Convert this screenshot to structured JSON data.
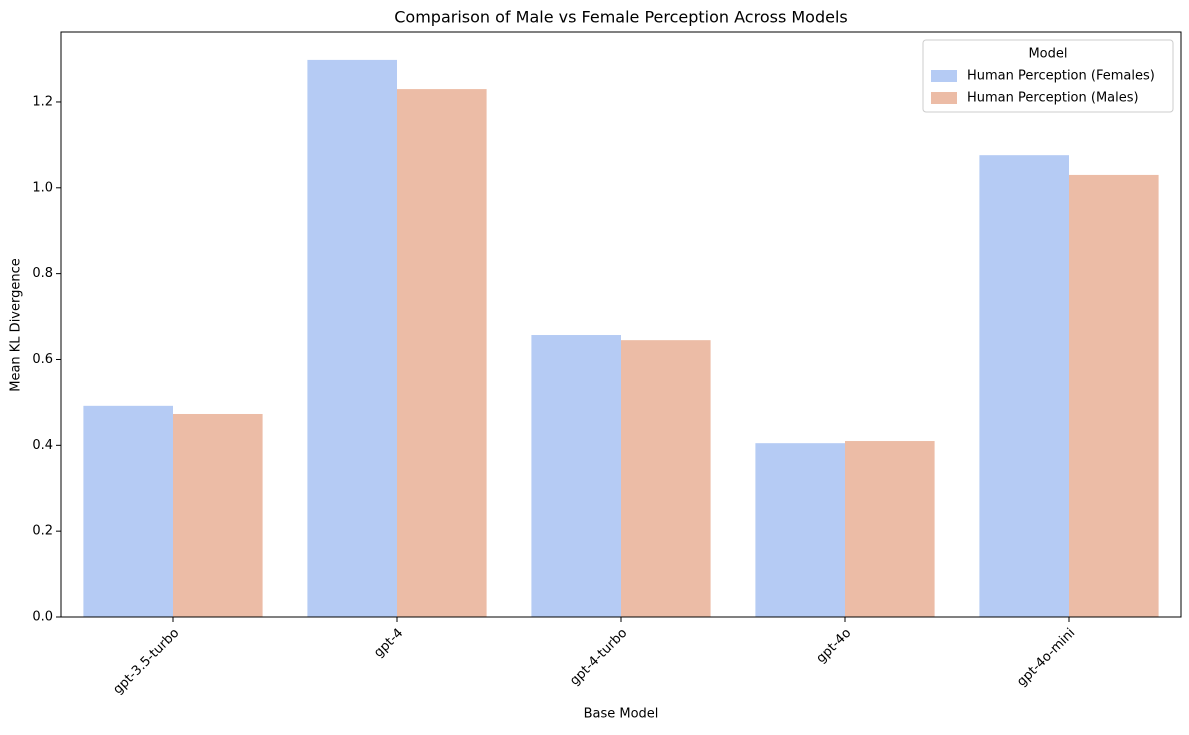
{
  "chart_data": {
    "type": "bar",
    "title": "Comparison of Male vs Female Perception Across Models",
    "x_label": "Base Model",
    "y_label": "Mean KL Divergence",
    "categories": [
      "gpt-3.5-turbo",
      "gpt-4",
      "gpt-4-turbo",
      "gpt-4o",
      "gpt-4o-mini"
    ],
    "series": [
      {
        "name": "Human Perception (Females)",
        "color": "#b5cbf4",
        "values": [
          0.492,
          1.298,
          0.657,
          0.405,
          1.076
        ]
      },
      {
        "name": "Human Perception (Males)",
        "color": "#ecbca6",
        "values": [
          0.473,
          1.23,
          0.645,
          0.41,
          1.03
        ]
      }
    ],
    "legend_title": "Model",
    "legend": "upper right",
    "ylim": [
      0,
      1.363
    ],
    "yticks": [
      {
        "value": 0,
        "label": "0.0"
      },
      0.2,
      0.4,
      0.6,
      0.8,
      {
        "value": 1,
        "label": "1.0"
      },
      1.2
    ]
  }
}
